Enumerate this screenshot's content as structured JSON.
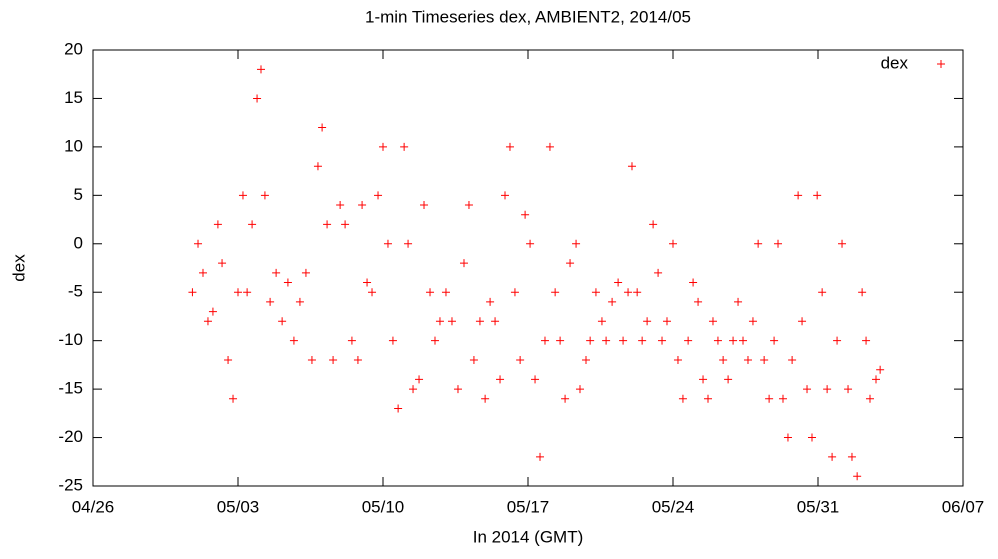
{
  "chart_data": {
    "type": "scatter",
    "title": "1-min Timeseries dex, AMBIENT2, 2014/05",
    "x_label": "In 2014 (GMT)",
    "y_label": "dex",
    "legend_position": "top-right",
    "xlim": [
      116,
      158
    ],
    "xticks": [
      {
        "value": 116,
        "label": "04/26"
      },
      {
        "value": 123,
        "label": "05/03"
      },
      {
        "value": 130,
        "label": "05/10"
      },
      {
        "value": 137,
        "label": "05/17"
      },
      {
        "value": 144,
        "label": "05/24"
      },
      {
        "value": 151,
        "label": "05/31"
      },
      {
        "value": 158,
        "label": "06/07"
      }
    ],
    "ylim": [
      -25,
      20
    ],
    "yticks": [
      -25,
      -20,
      -15,
      -10,
      -5,
      0,
      5,
      10,
      15,
      20
    ],
    "series": [
      {
        "name": "dex",
        "color": "#ff0000",
        "x": [
          120.8,
          121.07,
          121.31,
          121.55,
          121.79,
          122.03,
          122.23,
          122.52,
          122.76,
          123.0,
          123.24,
          123.44,
          123.68,
          123.92,
          124.11,
          124.3,
          124.55,
          124.84,
          125.13,
          125.41,
          125.7,
          125.99,
          126.28,
          126.57,
          126.86,
          127.06,
          127.3,
          127.59,
          127.93,
          128.17,
          128.5,
          128.79,
          128.99,
          129.23,
          129.47,
          129.76,
          130.0,
          130.24,
          130.48,
          130.73,
          131.02,
          131.21,
          131.45,
          131.74,
          131.98,
          132.27,
          132.51,
          132.75,
          133.04,
          133.33,
          133.62,
          133.91,
          134.15,
          134.39,
          134.68,
          134.93,
          135.17,
          135.41,
          135.65,
          135.89,
          136.13,
          136.37,
          136.62,
          136.86,
          137.1,
          137.34,
          137.58,
          137.82,
          138.06,
          138.31,
          138.55,
          138.79,
          139.03,
          139.32,
          139.51,
          139.8,
          140.0,
          140.28,
          140.57,
          140.77,
          141.06,
          141.35,
          141.59,
          141.83,
          142.02,
          142.27,
          142.51,
          142.75,
          143.04,
          143.28,
          143.47,
          143.71,
          144.0,
          144.24,
          144.48,
          144.73,
          144.97,
          145.21,
          145.45,
          145.69,
          145.93,
          146.17,
          146.42,
          146.66,
          146.9,
          147.14,
          147.38,
          147.62,
          147.86,
          148.11,
          148.4,
          148.64,
          148.88,
          149.07,
          149.31,
          149.55,
          149.75,
          150.04,
          150.23,
          150.47,
          150.71,
          150.96,
          151.2,
          151.44,
          151.68,
          151.92,
          152.16,
          152.45,
          152.64,
          152.89,
          153.13,
          153.32,
          153.51,
          153.8,
          154.0
        ],
        "values": [
          -5,
          0,
          -3,
          -8,
          -7,
          2,
          -2,
          -12,
          -16,
          -5,
          5,
          -5,
          2,
          15,
          18,
          5,
          -6,
          -3,
          -8,
          -4,
          -10,
          -6,
          -3,
          -12,
          8,
          12,
          2,
          -12,
          4,
          2,
          -10,
          -12,
          4,
          -4,
          -5,
          5,
          10,
          0,
          -10,
          -17,
          10,
          0,
          -15,
          -14,
          4,
          -5,
          -10,
          -8,
          -5,
          -8,
          -15,
          -2,
          4,
          -12,
          -8,
          -16,
          -6,
          -8,
          -14,
          5,
          10,
          -5,
          -12,
          3,
          0,
          -14,
          -22,
          -10,
          10,
          -5,
          -10,
          -16,
          -2,
          0,
          -15,
          -12,
          -10,
          -5,
          -8,
          -10,
          -6,
          -4,
          -10,
          -5,
          8,
          -5,
          -10,
          -8,
          2,
          -3,
          -10,
          -8,
          0,
          -12,
          -16,
          -10,
          -4,
          -6,
          -14,
          -16,
          -8,
          -10,
          -12,
          -14,
          -10,
          -6,
          -10,
          -12,
          -8,
          0,
          -12,
          -16,
          -10,
          0,
          -16,
          -20,
          -12,
          5,
          -8,
          -15,
          -20,
          5,
          -5,
          -15,
          -22,
          -10,
          0,
          -15,
          -22,
          -24,
          -5,
          -10,
          -16,
          -14,
          -13
        ]
      }
    ]
  }
}
